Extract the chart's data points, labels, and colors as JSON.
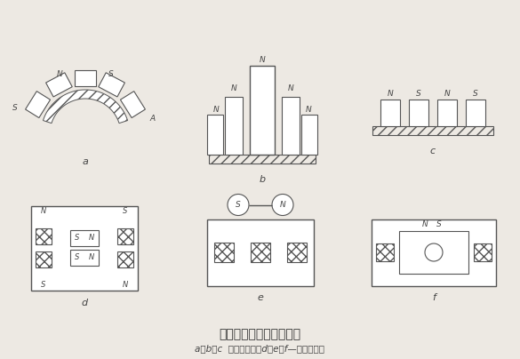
{
  "title": "开放型磁系和闭合型磁系",
  "subtitle": "a、b、c  开放型磁系；d、e、f—闭合型磁系",
  "bg_color": "#ede9e3",
  "lc": "#555555",
  "label_a": "a",
  "label_b": "b",
  "label_c": "c",
  "label_d": "d",
  "label_e": "e",
  "label_f": "f"
}
